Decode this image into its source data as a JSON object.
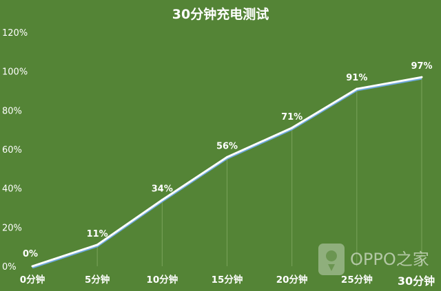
{
  "chart_data": {
    "type": "line",
    "title": "30分钟充电测试",
    "categories": [
      "0分钟",
      "5分钟",
      "10分钟",
      "15分钟",
      "20分钟",
      "25分钟",
      "30分钟"
    ],
    "values": [
      0,
      11,
      34,
      56,
      71,
      91,
      97
    ],
    "data_labels": [
      "0%",
      "11%",
      "34%",
      "56%",
      "71%",
      "91%",
      "97%"
    ],
    "yticks": [
      "0%",
      "20%",
      "40%",
      "60%",
      "80%",
      "100%",
      "120%"
    ],
    "ylim": [
      0,
      120
    ],
    "grid": false,
    "legend": "none"
  },
  "watermark": {
    "text": "OPPO之家",
    "icon": "oppo-logo-icon"
  },
  "colors": {
    "background": "#548436",
    "line": "#ffffff",
    "line_shadow": "#6fa8dc",
    "droplines": "#7aa35a"
  }
}
